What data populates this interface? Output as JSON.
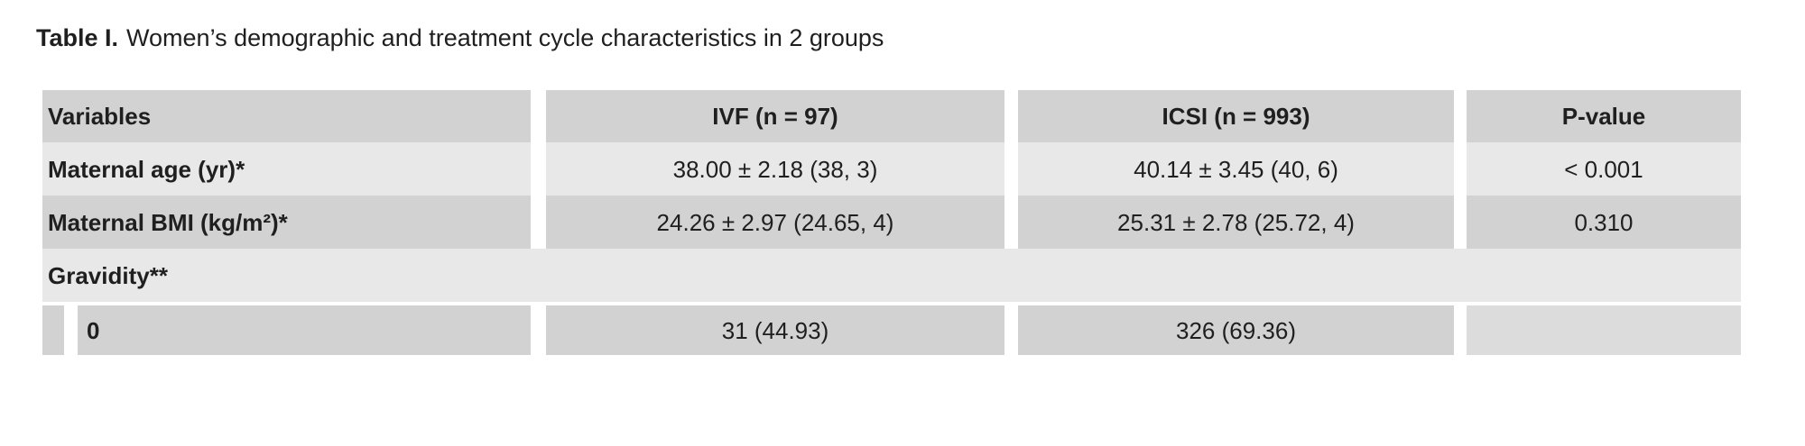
{
  "title": {
    "prefix": "Table I.",
    "text": "Women’s demographic and treatment cycle characteristics in 2 groups"
  },
  "colors": {
    "stripe_dark": "#d2d2d2",
    "stripe_light": "#e8e8e8",
    "empty_cell_gray": "#dcdcdc",
    "text": "#1f1f1f",
    "background": "#ffffff"
  },
  "table": {
    "header": {
      "variables": "Variables",
      "ivf": "IVF (n = 97)",
      "icsi": "ICSI (n = 993)",
      "p": "P-value"
    },
    "rows": [
      {
        "variable": "Maternal age (yr)*",
        "ivf": "38.00 ± 2.18 (38, 3)",
        "icsi": "40.14 ± 3.45 (40, 6)",
        "p": "< 0.001"
      },
      {
        "variable": "Maternal BMI (kg/m²)*",
        "ivf": "24.26 ± 2.97 (24.65, 4)",
        "icsi": "25.31 ± 2.78 (25.72, 4)",
        "p": "0.310"
      },
      {
        "variable": "Gravidity**",
        "section": true
      },
      {
        "variable": "0",
        "ivf": "31 (44.93)",
        "icsi": "326 (69.36)",
        "p": "",
        "sub": true
      }
    ]
  }
}
